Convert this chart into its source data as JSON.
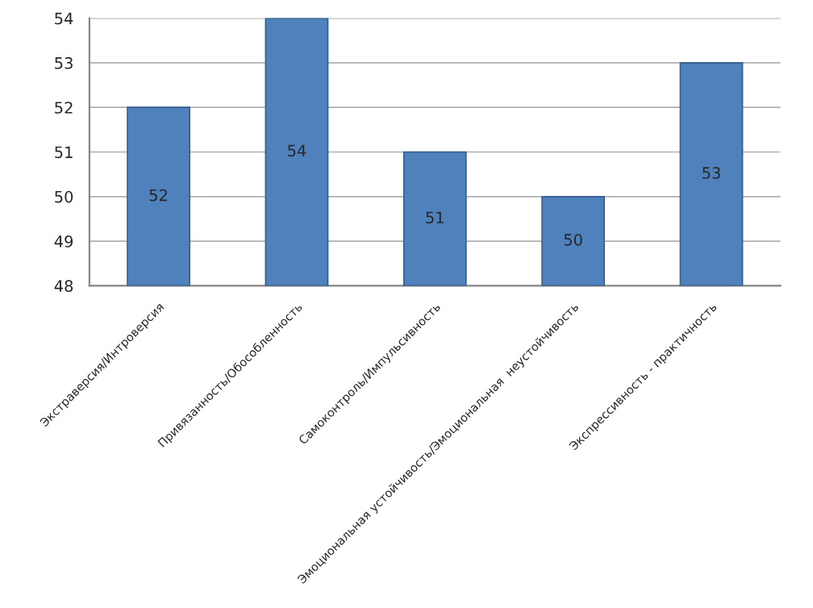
{
  "chart_data": {
    "type": "bar",
    "categories": [
      "Экстраверсия/Интроверсия",
      "Привязанность/Обособленность",
      "Самоконтроль/Импульсивность",
      "Эмоциональная устойчивость/Эмоциональная  неустойчивость",
      "Экспрессивность - практичность"
    ],
    "values": [
      52,
      54,
      51,
      50,
      53
    ],
    "color": "#4f81bd",
    "ylim": [
      48,
      54
    ],
    "yticks": [
      48,
      49,
      50,
      51,
      52,
      53,
      54
    ],
    "grid": "y",
    "data_labels": true,
    "legend": false
  }
}
